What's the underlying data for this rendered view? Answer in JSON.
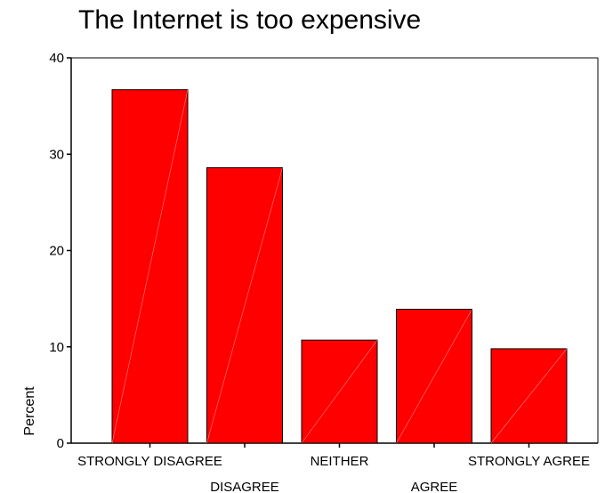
{
  "chart_data": {
    "type": "bar",
    "title": "The Internet is too expensive",
    "xlabel": "",
    "ylabel": "Percent",
    "categories": [
      "STRONGLY DISAGREE",
      "DISAGREE",
      "NEITHER",
      "AGREE",
      "STRONGLY AGREE"
    ],
    "values": [
      36.7,
      28.6,
      10.7,
      13.9,
      9.8
    ],
    "ylim": [
      0,
      40
    ],
    "yticks": [
      "0",
      "10",
      "20",
      "30",
      "40"
    ],
    "grid": false,
    "legend": "none",
    "bar_color": "#ff0000"
  }
}
